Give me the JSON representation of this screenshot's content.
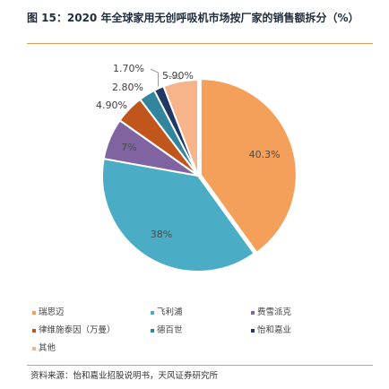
{
  "figure": {
    "title": "图 15：2020 年全球家用无创呼吸机市场按厂家的销售额拆分（%）",
    "source": "资料来源：怡和嘉业招股说明书，天风证券研究所"
  },
  "chart_data": {
    "type": "pie",
    "title": "图 15：2020 年全球家用无创呼吸机市场按厂家的销售额拆分（%）",
    "unit": "%",
    "slices": [
      {
        "name": "瑞思迈",
        "value": 40.3,
        "label": "40.3%",
        "color": "#F5A05A"
      },
      {
        "name": "飞利浦",
        "value": 38,
        "label": "38%",
        "color": "#4BACC6"
      },
      {
        "name": "费雪派克",
        "value": 7,
        "label": "7%",
        "color": "#8064A2"
      },
      {
        "name": "律维施泰因（万曼）",
        "value": 4.9,
        "label": "4.90%",
        "color": "#C0561B"
      },
      {
        "name": "德百世",
        "value": 2.8,
        "label": "2.80%",
        "color": "#31859C"
      },
      {
        "name": "怡和嘉业",
        "value": 1.7,
        "label": "1.70%",
        "color": "#1F3864"
      },
      {
        "name": "其他",
        "value": 5.9,
        "label": "5.90%",
        "color": "#F7B48A"
      }
    ],
    "legend_position": "bottom"
  }
}
